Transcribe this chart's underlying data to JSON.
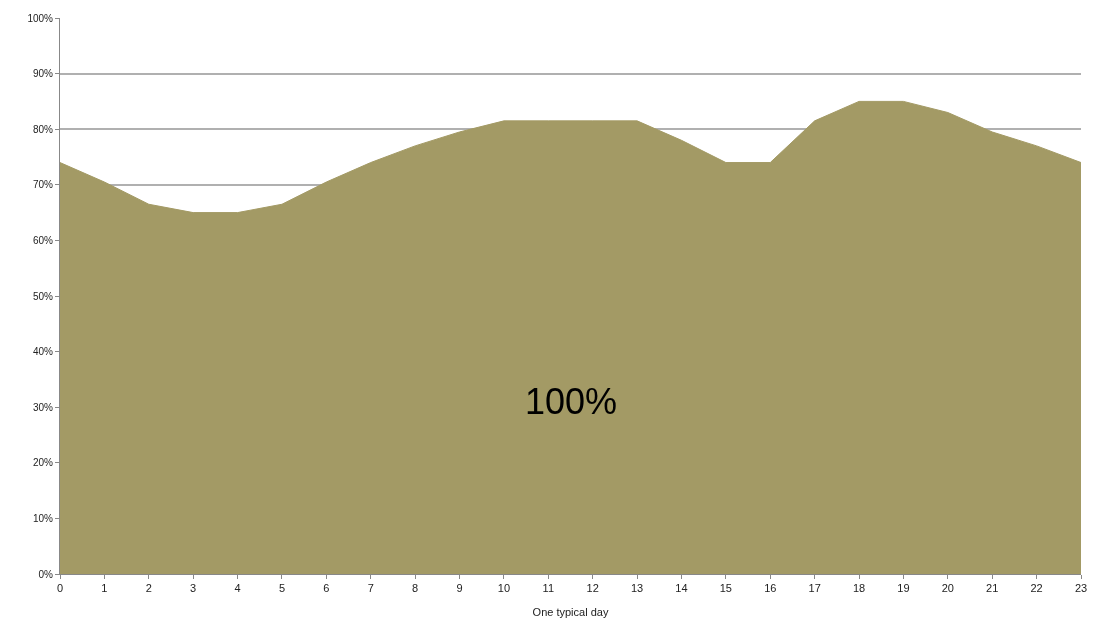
{
  "chart_data": {
    "type": "area",
    "xlabel": "One typical day",
    "x": [
      0,
      1,
      2,
      3,
      4,
      5,
      6,
      7,
      8,
      9,
      10,
      11,
      12,
      13,
      14,
      15,
      16,
      17,
      18,
      19,
      20,
      21,
      22,
      23
    ],
    "series": [
      {
        "color": "#a39a65",
        "values": [
          74,
          70.5,
          66.5,
          65,
          65,
          66.5,
          70.5,
          74,
          77,
          79.5,
          81.5,
          81.5,
          81.5,
          81.5,
          78,
          74,
          74,
          81.5,
          85,
          85,
          83,
          79.5,
          77,
          74
        ]
      }
    ],
    "xlim": [
      0,
      23
    ],
    "xticks": [
      0,
      1,
      2,
      3,
      4,
      5,
      6,
      7,
      8,
      9,
      10,
      11,
      12,
      13,
      14,
      15,
      16,
      17,
      18,
      19,
      20,
      21,
      22,
      23
    ],
    "ylim": [
      0,
      100
    ],
    "yticks": [
      {
        "value": 0,
        "label": "0%"
      },
      {
        "value": 10,
        "label": "10%"
      },
      {
        "value": 20,
        "label": "20%"
      },
      {
        "value": 30,
        "label": "30%"
      },
      {
        "value": 40,
        "label": "40%"
      },
      {
        "value": 50,
        "label": "50%"
      },
      {
        "value": 60,
        "label": "60%"
      },
      {
        "value": 70,
        "label": "70%"
      },
      {
        "value": 80,
        "label": "80%"
      },
      {
        "value": 90,
        "label": "90%"
      },
      {
        "value": 100,
        "label": "100%"
      }
    ],
    "grid": "y",
    "annotations": [
      "100%"
    ]
  }
}
